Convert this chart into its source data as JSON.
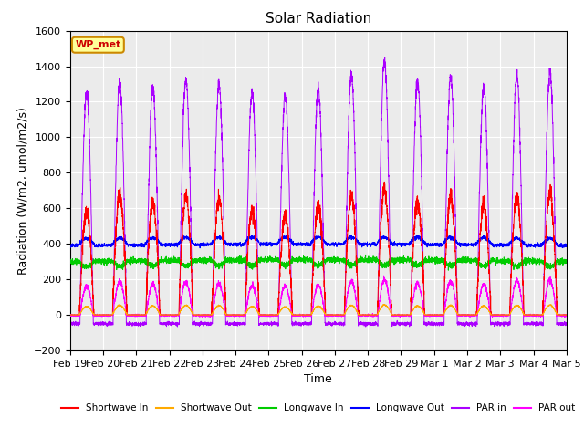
{
  "title": "Solar Radiation",
  "ylabel": "Radiation (W/m2, umol/m2/s)",
  "xlabel": "Time",
  "ylim": [
    -200,
    1600
  ],
  "yticks": [
    -200,
    0,
    200,
    400,
    600,
    800,
    1000,
    1200,
    1400,
    1600
  ],
  "date_labels": [
    "Feb 19",
    "Feb 20",
    "Feb 21",
    "Feb 22",
    "Feb 23",
    "Feb 24",
    "Feb 25",
    "Feb 26",
    "Feb 27",
    "Feb 28",
    "Feb 29",
    "Mar 1",
    "Mar 2",
    "Mar 3",
    "Mar 4",
    "Mar 5"
  ],
  "n_days": 15,
  "legend_entries": [
    "Shortwave In",
    "Shortwave Out",
    "Longwave In",
    "Longwave Out",
    "PAR in",
    "PAR out"
  ],
  "legend_colors": [
    "#ff0000",
    "#ffaa00",
    "#00cc00",
    "#0000ff",
    "#aa00ff",
    "#ff00ff"
  ],
  "wp_met_label": "WP_met",
  "wp_met_bg": "#ffff99",
  "wp_met_border": "#cc8800",
  "wp_met_text": "#cc0000",
  "background_color": "#ebebeb",
  "grid_color": "#ffffff",
  "title_fontsize": 11,
  "axis_fontsize": 9,
  "tick_fontsize": 8,
  "figsize": [
    6.4,
    4.8
  ],
  "dpi": 100
}
